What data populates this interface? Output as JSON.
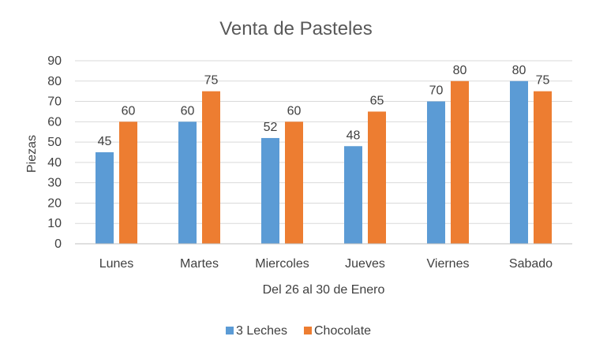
{
  "chart_data": {
    "type": "bar",
    "title": "Venta de Pasteles",
    "xlabel": "Del 26 al 30 de Enero",
    "ylabel": "Piezas",
    "categories": [
      "Lunes",
      "Martes",
      "Miercoles",
      "Jueves",
      "Viernes",
      "Sabado"
    ],
    "series": [
      {
        "name": "3 Leches",
        "values": [
          45,
          60,
          52,
          48,
          70,
          80
        ],
        "color": "#5B9BD5"
      },
      {
        "name": "Chocolate",
        "values": [
          60,
          75,
          60,
          65,
          80,
          75
        ],
        "color": "#ED7D31"
      }
    ],
    "ylim": [
      0,
      90
    ],
    "yticks": [
      0,
      10,
      20,
      30,
      40,
      50,
      60,
      70,
      80,
      90
    ],
    "grid": true,
    "legend_position": "bottom",
    "data_labels": true
  }
}
